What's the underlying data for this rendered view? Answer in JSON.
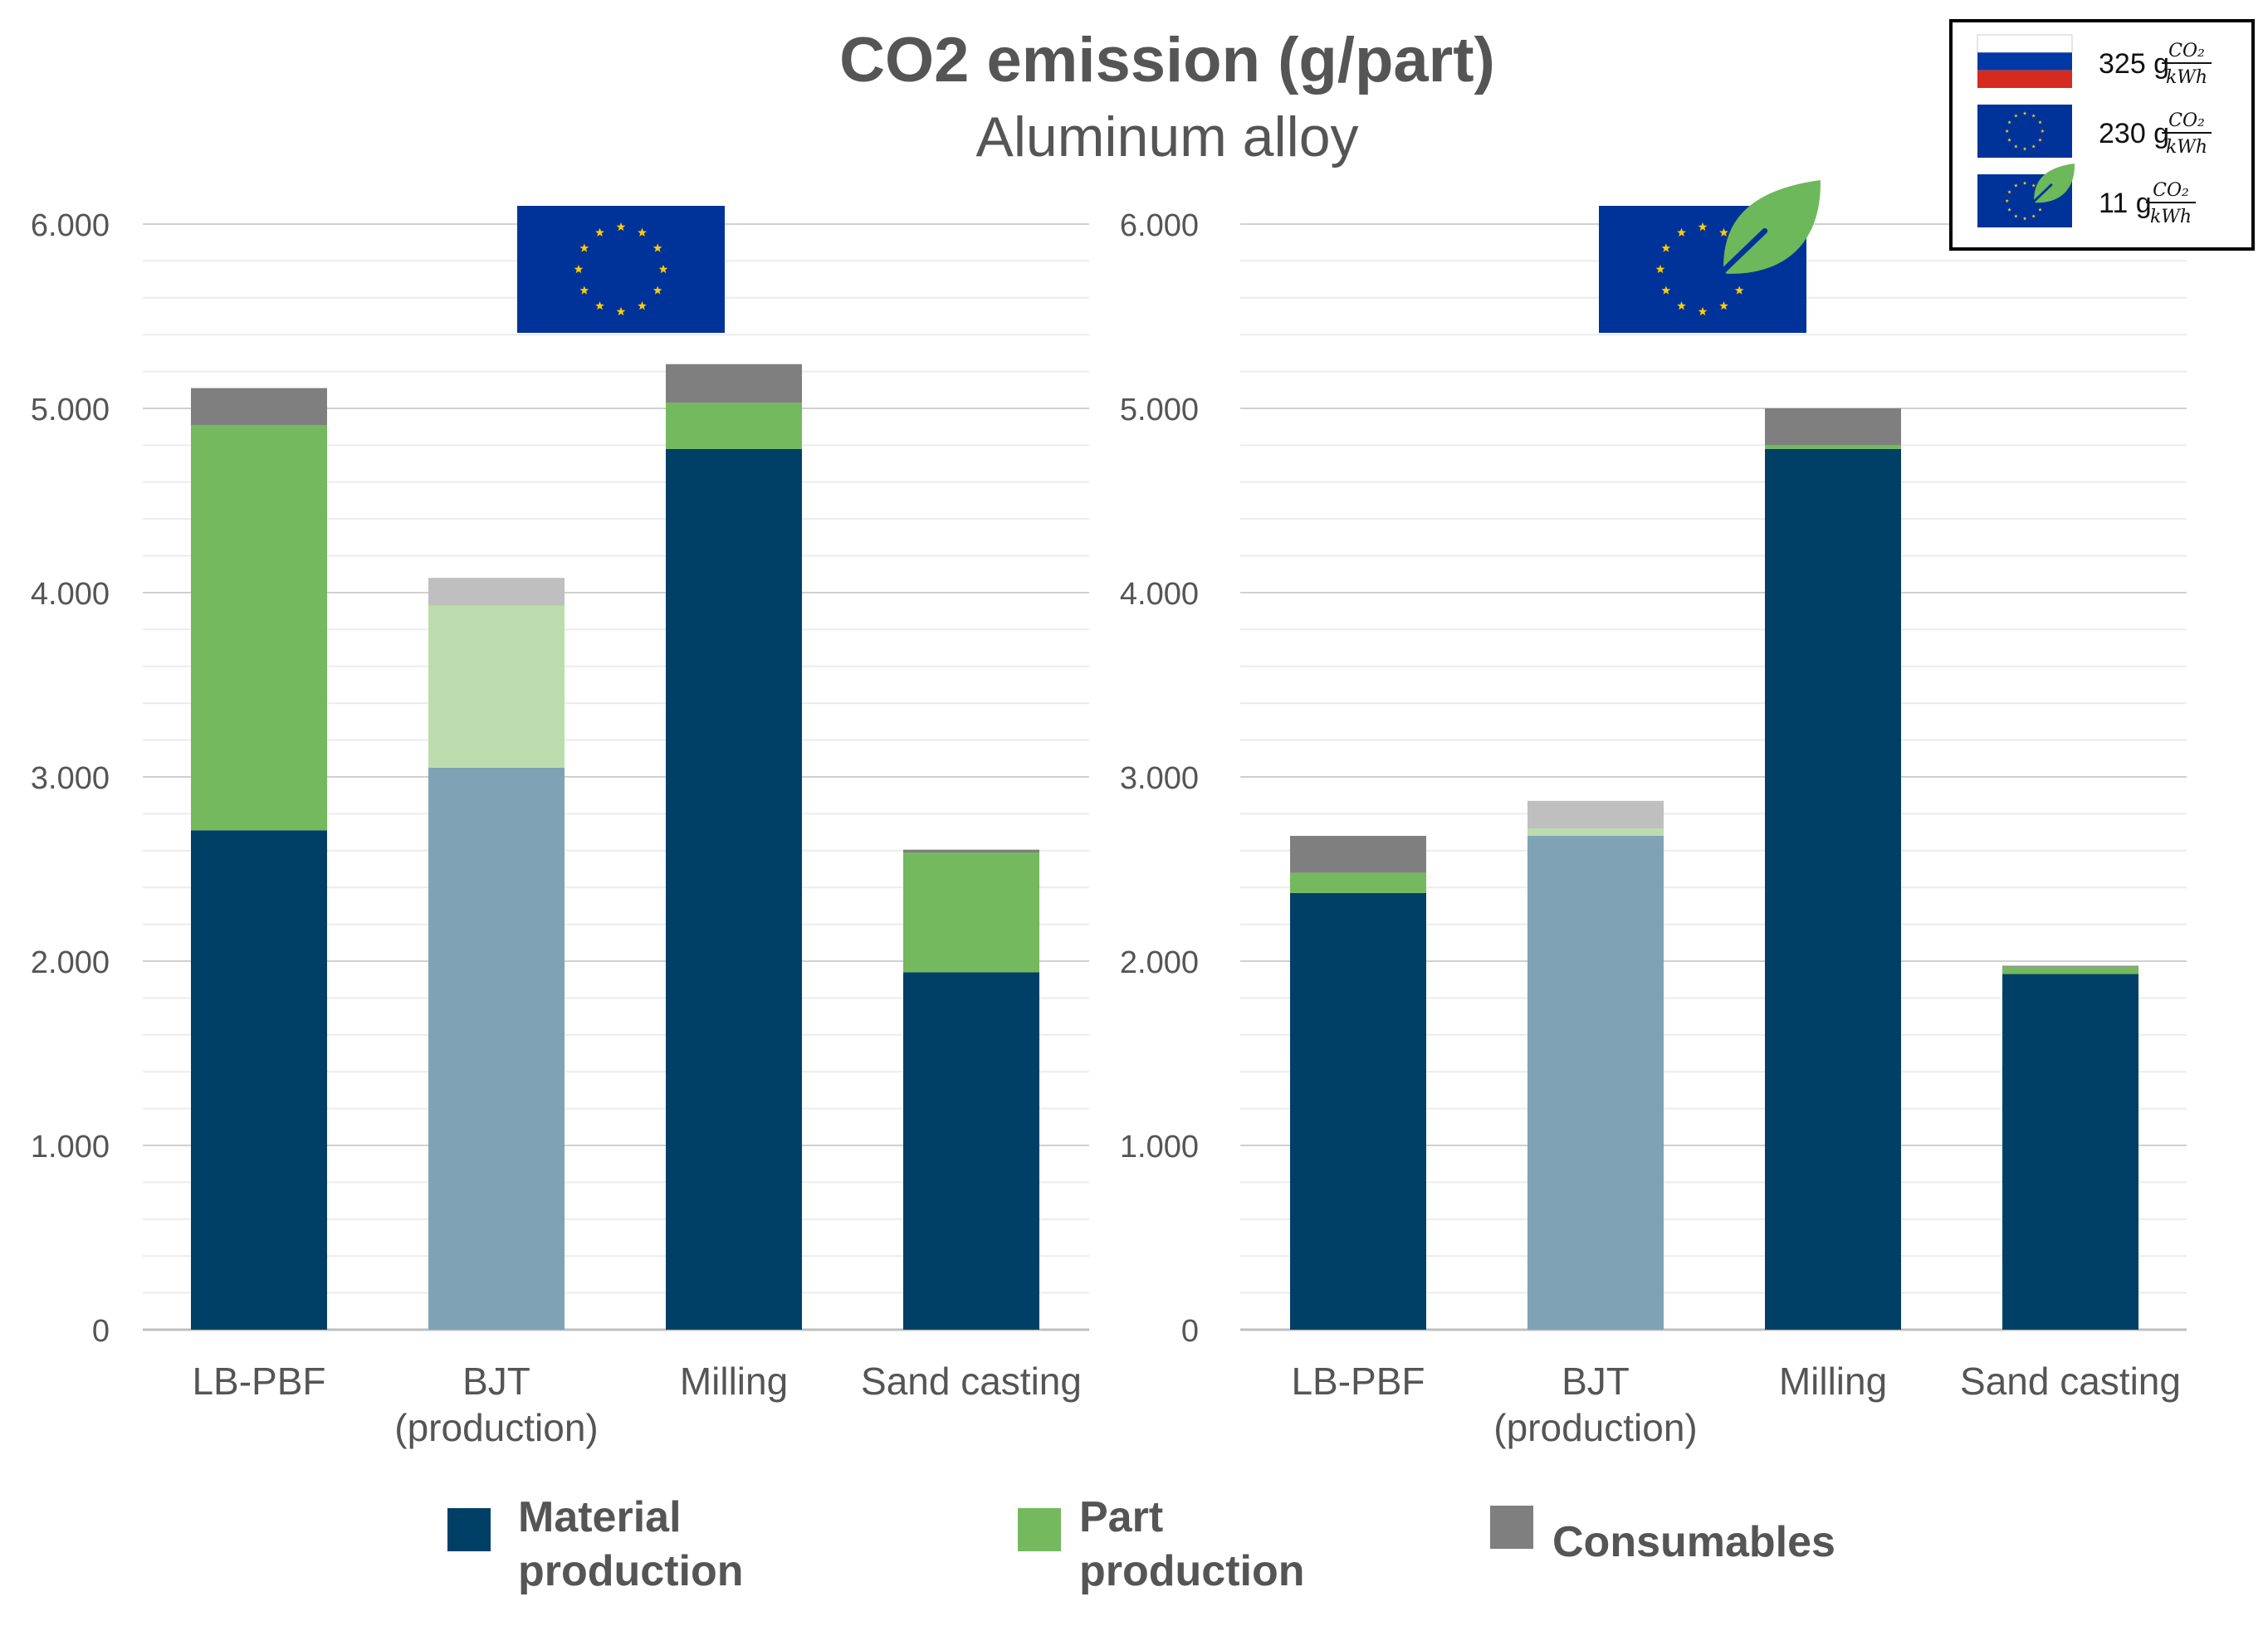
{
  "chart_data": {
    "title": "CO2 emission (g/part)",
    "subtitle": "Aluminum alloy",
    "type": "bar",
    "stacked": true,
    "categories": [
      "LB-PBF",
      "BJT (production)",
      "Milling",
      "Sand casting"
    ],
    "category_lines": [
      [
        "LB-PBF"
      ],
      [
        "BJT",
        "(production)"
      ],
      [
        "Milling"
      ],
      [
        "Sand casting"
      ]
    ],
    "ylim": [
      0,
      6000
    ],
    "yticks": [
      0,
      1000,
      2000,
      3000,
      4000,
      5000,
      6000
    ],
    "ytick_labels": [
      "0",
      "1.000",
      "2.000",
      "3.000",
      "4.000",
      "5.000",
      "6.000"
    ],
    "grid": true,
    "faded_category": "BJT (production)",
    "legend": {
      "placement": "bottom",
      "items": [
        {
          "lines": [
            "Material",
            "production"
          ],
          "color": "#004066"
        },
        {
          "lines": [
            "Part",
            "production"
          ],
          "color": "#74B95D"
        },
        {
          "lines": [
            "Consumables"
          ],
          "color": "#7F7F7F"
        }
      ]
    },
    "series_colors": [
      "#004066",
      "#74B95D",
      "#7F7F7F"
    ],
    "faded_series_colors": [
      "#80A2B5",
      "#BBDDAD",
      "#BFBFBF"
    ],
    "panels": [
      {
        "flag": "eu-flag",
        "series": [
          {
            "values": [
              2710,
              3050,
              4780,
              1940
            ]
          },
          {
            "values": [
              2200,
              880,
              250,
              650
            ]
          },
          {
            "values": [
              200,
              150,
              210,
              15
            ]
          }
        ]
      },
      {
        "flag": "eu-flag-leaf",
        "series": [
          {
            "values": [
              2370,
              2680,
              4780,
              1930
            ]
          },
          {
            "values": [
              110,
              40,
              20,
              40
            ]
          },
          {
            "values": [
              200,
              150,
              200,
              5
            ]
          }
        ]
      }
    ],
    "electricity_key": {
      "placement": "top-right",
      "items": [
        {
          "flag": "russia-flag",
          "value": "325 g",
          "numerator": "CO₂",
          "denominator": "kWh"
        },
        {
          "flag": "eu-flag",
          "value": "230 g",
          "numerator": "CO₂",
          "denominator": "kWh"
        },
        {
          "flag": "eu-flag-leaf",
          "value": "11 g",
          "numerator": "CO₂",
          "denominator": "kWh"
        }
      ]
    }
  },
  "colors": {
    "eu_blue": "#003399",
    "eu_star": "#FFCC00",
    "leaf_green": "#6DB85A",
    "russia_white": "#FFFFFF",
    "russia_blue": "#0039A6",
    "russia_red": "#D52B1E",
    "grid_major": "#D0D0D0",
    "grid_minor": "#ECECEC"
  }
}
